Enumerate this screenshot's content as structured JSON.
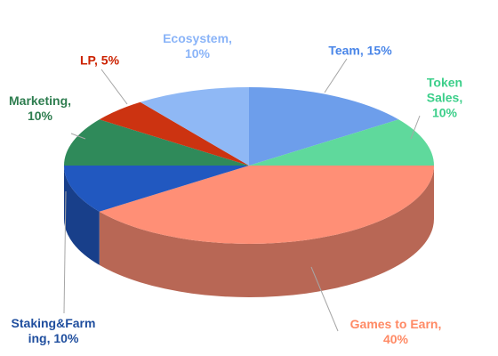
{
  "chart_data": {
    "type": "pie",
    "values": [
      15,
      10,
      40,
      10,
      10,
      5,
      10
    ],
    "value_labels": [
      "Team, 15%",
      "Token Sales,\n10%",
      "Games to Earn,\n40%",
      "Staking&Farm\ning, 10%",
      "Marketing,\n10%",
      "LP, 5%",
      "Ecosystem,\n10%"
    ],
    "colors": [
      "#6d9eeb",
      "#5fd99c",
      "#ff8f76",
      "#2158c0",
      "#2f8a5a",
      "#cc3311",
      "#8fb8f5"
    ],
    "label_colors": [
      "#4a86e8",
      "#3ccf8a",
      "#ff8a65",
      "#1f4e9e",
      "#2e7d4f",
      "#cc2200",
      "#8ab4f8"
    ]
  }
}
